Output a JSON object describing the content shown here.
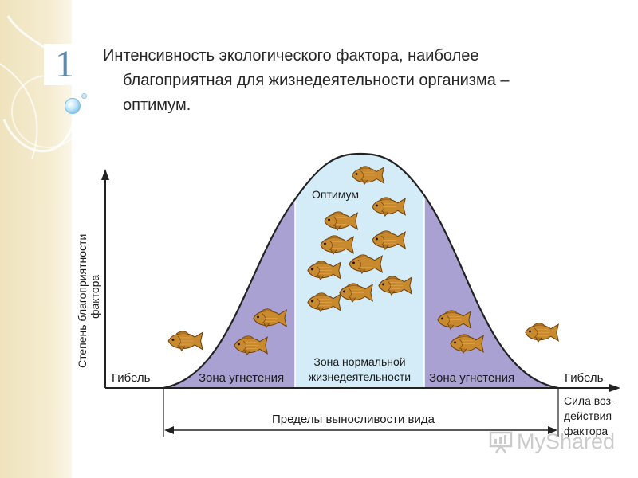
{
  "slide": {
    "number": "1"
  },
  "heading": {
    "line1": "Интенсивность экологического фактора, наиболее",
    "line2": "благоприятная для жизнедеятельности организма –",
    "line3": "оптимум."
  },
  "diagram": {
    "y_axis_label_line1": "Степень благоприятности",
    "y_axis_label_line2": "фактора",
    "death_left": "Гибель",
    "death_right": "Гибель",
    "zone_left": "Зона угнетения",
    "zone_right": "Зона угнетения",
    "zone_center_line1": "Зона нормальной",
    "zone_center_line2": "жизнедеятельности",
    "optimum": "Оптимум",
    "x_axis_label_line1": "Сила воз-",
    "x_axis_label_line2": "действия",
    "x_axis_label_line3": "фактора",
    "tolerance_limits": "Пределы выносливости вида",
    "colors": {
      "oppression_zone": "#a9a1d2",
      "normal_zone": "#d3ecf7",
      "curve": "#222222",
      "fish": "#c98a2e"
    }
  },
  "watermark": {
    "text": "MyShared"
  }
}
